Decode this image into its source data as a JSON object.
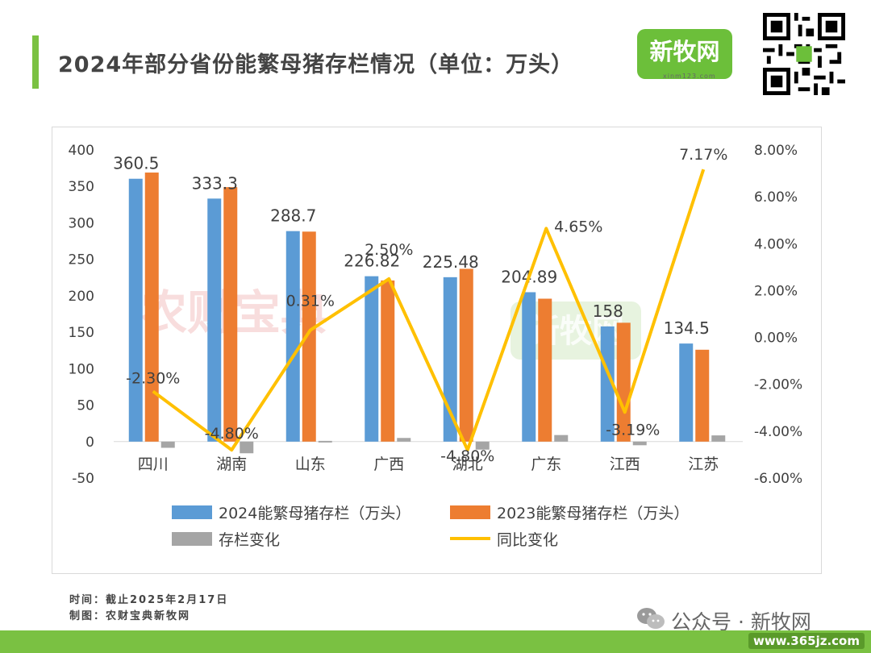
{
  "page": {
    "title": "2024年部分省份能繁母猪存栏情况（单位：万头）",
    "logo_text": "新牧网",
    "logo_url_text": "xinm123.com",
    "footer_time": "时间：截止2025年2月17日",
    "footer_maker": "制图：农财宝典新牧网",
    "wechat_caption": "公众号 · 新牧网",
    "site_mark": "www.365jz.com"
  },
  "colors": {
    "series_2024": "#5b9bd5",
    "series_2023": "#ed7d31",
    "series_change": "#a5a5a5",
    "series_yoy": "#ffc000",
    "accent_green": "#7ac142"
  },
  "chart_data": {
    "type": "bar",
    "categories": [
      "四川",
      "湖南",
      "山东",
      "广西",
      "湖北",
      "广东",
      "江西",
      "江苏"
    ],
    "series": [
      {
        "name": "2024能繁母猪存栏（万头）",
        "axis": "left",
        "values": [
          360.5,
          333.3,
          288.7,
          226.82,
          225.48,
          204.89,
          158,
          134.5
        ],
        "labels": [
          "360.5",
          "333.3",
          "288.7",
          "226.82",
          "225.48",
          "204.89",
          "158",
          "134.5"
        ]
      },
      {
        "name": "2023能繁母猪存栏（万头）",
        "axis": "left",
        "values": [
          369,
          349,
          288,
          221,
          237,
          196,
          163,
          126
        ]
      },
      {
        "name": "存栏变化",
        "axis": "left",
        "values": [
          -8.5,
          -16,
          1,
          5,
          -11,
          9,
          -5,
          8.5
        ]
      },
      {
        "name": "同比变化",
        "type": "line",
        "axis": "right",
        "values": [
          -2.3,
          -4.8,
          0.31,
          2.5,
          -4.8,
          4.65,
          -3.19,
          7.17
        ],
        "labels": [
          "-2.30%",
          "-4.80%",
          "0.31%",
          "2.50%",
          "-4.80%",
          "4.65%",
          "-3.19%",
          "7.17%"
        ]
      }
    ],
    "y_left": {
      "min": -50,
      "max": 400,
      "ticks": [
        "400",
        "350",
        "300",
        "250",
        "200",
        "150",
        "100",
        "50",
        "0",
        "-50"
      ]
    },
    "y_right": {
      "min": -6,
      "max": 8,
      "ticks": [
        "8.00%",
        "6.00%",
        "4.00%",
        "2.00%",
        "0.00%",
        "-2.00%",
        "-4.00%",
        "-6.00%"
      ]
    },
    "watermarks": [
      "农财宝典",
      "新牧网"
    ],
    "grid": false,
    "legend_position": "bottom"
  }
}
